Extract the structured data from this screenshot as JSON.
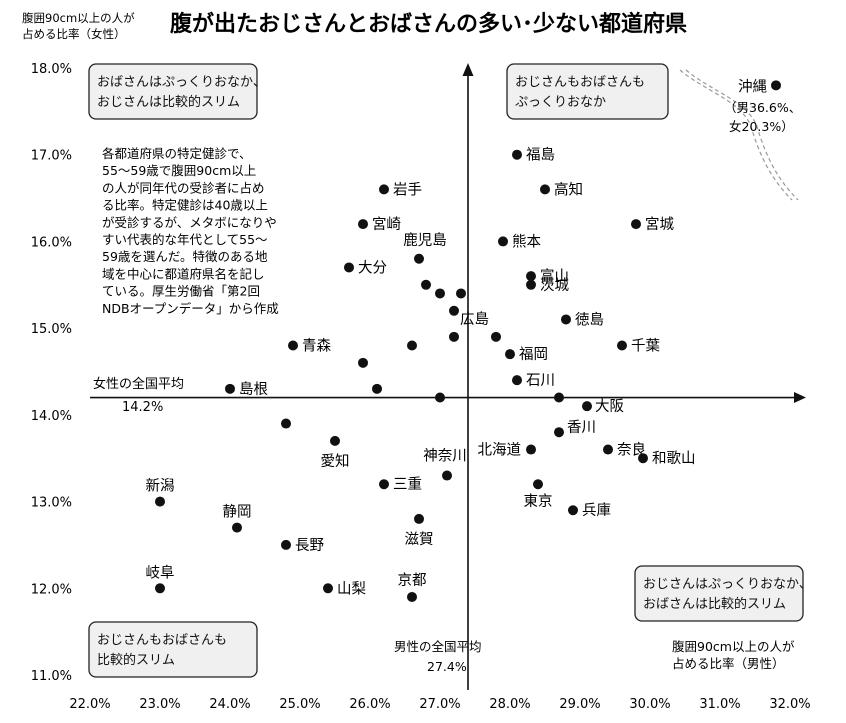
{
  "chart_data": {
    "type": "scatter",
    "title": "腹が出たおじさんとおばさんの多い･少ない都道府県",
    "ylabel_lines": [
      "腹囲90cm以上の人が",
      "占める比率（女性）"
    ],
    "xlabel_lines": [
      "腹囲90cm以上の人が",
      "占める比率（男性）"
    ],
    "xlim": [
      22.0,
      32.0
    ],
    "ylim": [
      11.0,
      18.0
    ],
    "x_ticks": [
      "22.0%",
      "23.0%",
      "24.0%",
      "25.0%",
      "26.0%",
      "27.0%",
      "28.0%",
      "29.0%",
      "30.0%",
      "31.0%",
      "32.0%"
    ],
    "y_ticks": [
      "11.0%",
      "12.0%",
      "13.0%",
      "14.0%",
      "15.0%",
      "16.0%",
      "17.0%",
      "18.0%"
    ],
    "male_national_average": {
      "value": 27.4,
      "label": "男性の全国平均",
      "value_label": "27.4%"
    },
    "female_national_average": {
      "value": 14.2,
      "label": "女性の全国平均",
      "value_label": "14.2%"
    },
    "quadrant_labels": [
      {
        "lines": [
          "おばさんはぷっくりおなか、",
          "おじさんは比較的スリム"
        ]
      },
      {
        "lines": [
          "おじさんもおばさんも",
          "ぷっくりおなか"
        ]
      },
      {
        "lines": [
          "おじさんもおばさんも",
          "比較的スリム"
        ]
      },
      {
        "lines": [
          "おじさんはぷっくりおなか、",
          "おばさんは比較的スリム"
        ]
      }
    ],
    "description_lines": [
      "各都道府県の特定健診で、",
      "55～59歳で腹囲90cm以上",
      "の人が同年代の受診者に占め",
      "る比率。特定健診は40歳以上",
      "が受診するが、メタボになりや",
      "すい代表的な年代として55～",
      "59歳を選んだ。特徴のある地",
      "域を中心に都道府県名を記し",
      "ている。厚生労働省「第2回",
      "NDBオープンデータ」から作成"
    ],
    "okinawa_note_lines": [
      "（男36.6%、",
      "女20.3%）"
    ],
    "points": [
      {
        "label": "沖縄",
        "x": 31.8,
        "y": 17.8
      },
      {
        "label": "福島",
        "x": 28.1,
        "y": 17.0
      },
      {
        "label": "岩手",
        "x": 26.2,
        "y": 16.6
      },
      {
        "label": "高知",
        "x": 28.5,
        "y": 16.6
      },
      {
        "label": "宮崎",
        "x": 25.9,
        "y": 16.2
      },
      {
        "label": "宮城",
        "x": 29.8,
        "y": 16.2
      },
      {
        "label": "熊本",
        "x": 27.9,
        "y": 16.0
      },
      {
        "label": "鹿児島",
        "x": 26.7,
        "y": 15.8
      },
      {
        "label": "大分",
        "x": 25.7,
        "y": 15.7
      },
      {
        "label": "富山",
        "x": 28.3,
        "y": 15.6
      },
      {
        "label": "茨城",
        "x": 28.3,
        "y": 15.5
      },
      {
        "label": "",
        "x": 26.8,
        "y": 15.5
      },
      {
        "label": "",
        "x": 27.0,
        "y": 15.4
      },
      {
        "label": "",
        "x": 27.3,
        "y": 15.4
      },
      {
        "label": "",
        "x": 27.2,
        "y": 15.2
      },
      {
        "label": "徳島",
        "x": 28.8,
        "y": 15.1
      },
      {
        "label": "広島",
        "x": 27.8,
        "y": 14.9
      },
      {
        "label": "",
        "x": 27.2,
        "y": 14.9
      },
      {
        "label": "青森",
        "x": 24.9,
        "y": 14.8
      },
      {
        "label": "",
        "x": 26.6,
        "y": 14.8
      },
      {
        "label": "千葉",
        "x": 29.6,
        "y": 14.8
      },
      {
        "label": "福岡",
        "x": 28.0,
        "y": 14.7
      },
      {
        "label": "",
        "x": 25.9,
        "y": 14.6
      },
      {
        "label": "石川",
        "x": 28.1,
        "y": 14.4
      },
      {
        "label": "島根",
        "x": 24.0,
        "y": 14.3
      },
      {
        "label": "",
        "x": 26.1,
        "y": 14.3
      },
      {
        "label": "",
        "x": 27.0,
        "y": 14.2
      },
      {
        "label": "",
        "x": 28.7,
        "y": 14.2
      },
      {
        "label": "大阪",
        "x": 29.1,
        "y": 14.1
      },
      {
        "label": "",
        "x": 24.8,
        "y": 13.9
      },
      {
        "label": "香川",
        "x": 28.7,
        "y": 13.8
      },
      {
        "label": "愛知",
        "x": 25.5,
        "y": 13.7
      },
      {
        "label": "北海道",
        "x": 28.3,
        "y": 13.6
      },
      {
        "label": "奈良",
        "x": 29.4,
        "y": 13.6
      },
      {
        "label": "和歌山",
        "x": 29.9,
        "y": 13.5
      },
      {
        "label": "神奈川",
        "x": 27.1,
        "y": 13.3
      },
      {
        "label": "三重",
        "x": 26.2,
        "y": 13.2
      },
      {
        "label": "東京",
        "x": 28.4,
        "y": 13.2
      },
      {
        "label": "新潟",
        "x": 23.0,
        "y": 13.0
      },
      {
        "label": "兵庫",
        "x": 28.9,
        "y": 12.9
      },
      {
        "label": "滋賀",
        "x": 26.7,
        "y": 12.8
      },
      {
        "label": "静岡",
        "x": 24.1,
        "y": 12.7
      },
      {
        "label": "長野",
        "x": 24.8,
        "y": 12.5
      },
      {
        "label": "岐阜",
        "x": 23.0,
        "y": 12.0
      },
      {
        "label": "山梨",
        "x": 25.4,
        "y": 12.0
      },
      {
        "label": "京都",
        "x": 26.6,
        "y": 11.9
      }
    ]
  }
}
